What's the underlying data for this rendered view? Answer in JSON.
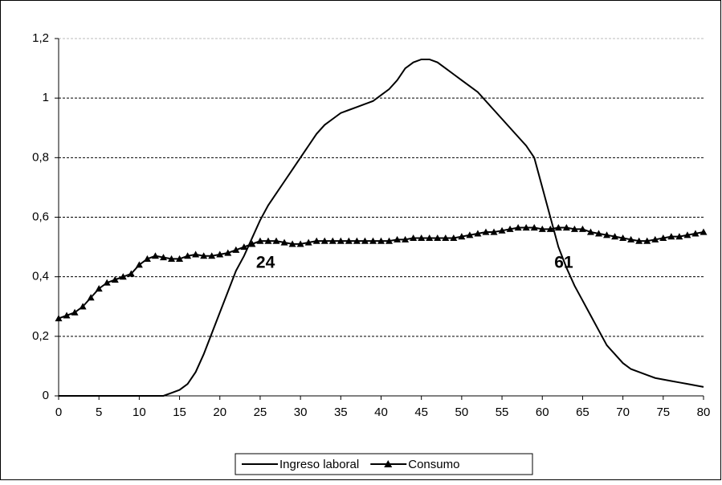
{
  "chart_data": {
    "type": "line",
    "x": [
      0,
      1,
      2,
      3,
      4,
      5,
      6,
      7,
      8,
      9,
      10,
      11,
      12,
      13,
      14,
      15,
      16,
      17,
      18,
      19,
      20,
      21,
      22,
      23,
      24,
      25,
      26,
      27,
      28,
      29,
      30,
      31,
      32,
      33,
      34,
      35,
      36,
      37,
      38,
      39,
      40,
      41,
      42,
      43,
      44,
      45,
      46,
      47,
      48,
      49,
      50,
      51,
      52,
      53,
      54,
      55,
      56,
      57,
      58,
      59,
      60,
      61,
      62,
      63,
      64,
      65,
      66,
      67,
      68,
      69,
      70,
      71,
      72,
      73,
      74,
      75,
      76,
      77,
      78,
      79,
      80
    ],
    "series": [
      {
        "name": "Ingreso laboral",
        "color": "#000000",
        "marker": "none",
        "values": [
          0,
          0,
          0,
          0,
          0,
          0,
          0,
          0,
          0,
          0,
          0,
          0,
          0,
          0,
          0.01,
          0.02,
          0.04,
          0.08,
          0.14,
          0.21,
          0.28,
          0.35,
          0.42,
          0.47,
          0.53,
          0.59,
          0.64,
          0.68,
          0.72,
          0.76,
          0.8,
          0.84,
          0.88,
          0.91,
          0.93,
          0.95,
          0.96,
          0.97,
          0.98,
          0.99,
          1.01,
          1.03,
          1.06,
          1.1,
          1.12,
          1.13,
          1.13,
          1.12,
          1.1,
          1.08,
          1.06,
          1.04,
          1.02,
          0.99,
          0.96,
          0.93,
          0.9,
          0.87,
          0.84,
          0.8,
          0.7,
          0.6,
          0.5,
          0.43,
          0.37,
          0.32,
          0.27,
          0.22,
          0.17,
          0.14,
          0.11,
          0.09,
          0.08,
          0.07,
          0.06,
          0.055,
          0.05,
          0.045,
          0.04,
          0.035,
          0.03
        ]
      },
      {
        "name": "Consumo",
        "color": "#000000",
        "marker": "triangle",
        "values": [
          0.26,
          0.27,
          0.28,
          0.3,
          0.33,
          0.36,
          0.38,
          0.39,
          0.4,
          0.41,
          0.44,
          0.46,
          0.47,
          0.465,
          0.46,
          0.46,
          0.47,
          0.475,
          0.47,
          0.47,
          0.475,
          0.48,
          0.49,
          0.5,
          0.51,
          0.52,
          0.52,
          0.52,
          0.515,
          0.51,
          0.51,
          0.515,
          0.52,
          0.52,
          0.52,
          0.52,
          0.52,
          0.52,
          0.52,
          0.52,
          0.52,
          0.52,
          0.525,
          0.525,
          0.53,
          0.53,
          0.53,
          0.53,
          0.53,
          0.53,
          0.535,
          0.54,
          0.545,
          0.55,
          0.55,
          0.555,
          0.56,
          0.565,
          0.565,
          0.565,
          0.56,
          0.56,
          0.565,
          0.565,
          0.56,
          0.56,
          0.55,
          0.545,
          0.54,
          0.535,
          0.53,
          0.525,
          0.52,
          0.52,
          0.525,
          0.53,
          0.535,
          0.535,
          0.54,
          0.545,
          0.55
        ]
      }
    ],
    "xlim": [
      0,
      80
    ],
    "xticks": [
      0,
      5,
      10,
      15,
      20,
      25,
      30,
      35,
      40,
      45,
      50,
      55,
      60,
      65,
      70,
      75,
      80
    ],
    "ylim": [
      0,
      1.2
    ],
    "yticks": [
      0,
      {
        "value": 0.2,
        "label": "0,2"
      },
      {
        "value": 0.4,
        "label": "0,4"
      },
      {
        "value": 0.6,
        "label": "0,6"
      },
      {
        "value": 0.8,
        "label": "0,8"
      },
      1,
      {
        "value": 1.2,
        "label": "1,2"
      }
    ],
    "grid": true,
    "legend": "bottom",
    "annotations": [
      {
        "text": "24",
        "x": 24
      },
      {
        "text": "61",
        "x": 61
      }
    ]
  }
}
